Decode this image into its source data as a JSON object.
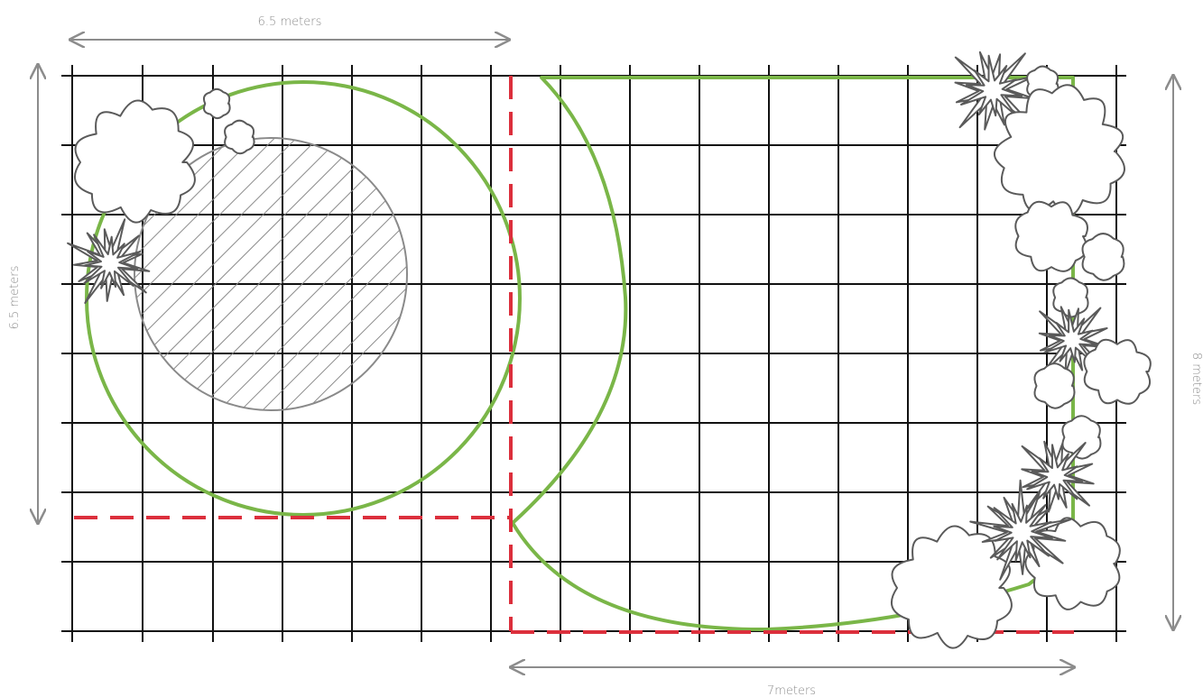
{
  "colors": {
    "grid": "#111111",
    "boundary": "#7ab648",
    "dashed": "#dc2f3c",
    "dimension": "#8c8c8c",
    "plant_stroke": "#5a5a5a",
    "hatch": "#8a8a8a"
  },
  "dimensions": {
    "top_width": "6.5 meters",
    "left_height": "6.5 meters",
    "right_height": "8 meters",
    "bottom_width": "7meters"
  },
  "icons": {
    "shrub": "cloud-shrub-icon",
    "small_shrub": "small-cloud-shrub-icon",
    "spiky_plant": "spiky-plant-icon"
  }
}
